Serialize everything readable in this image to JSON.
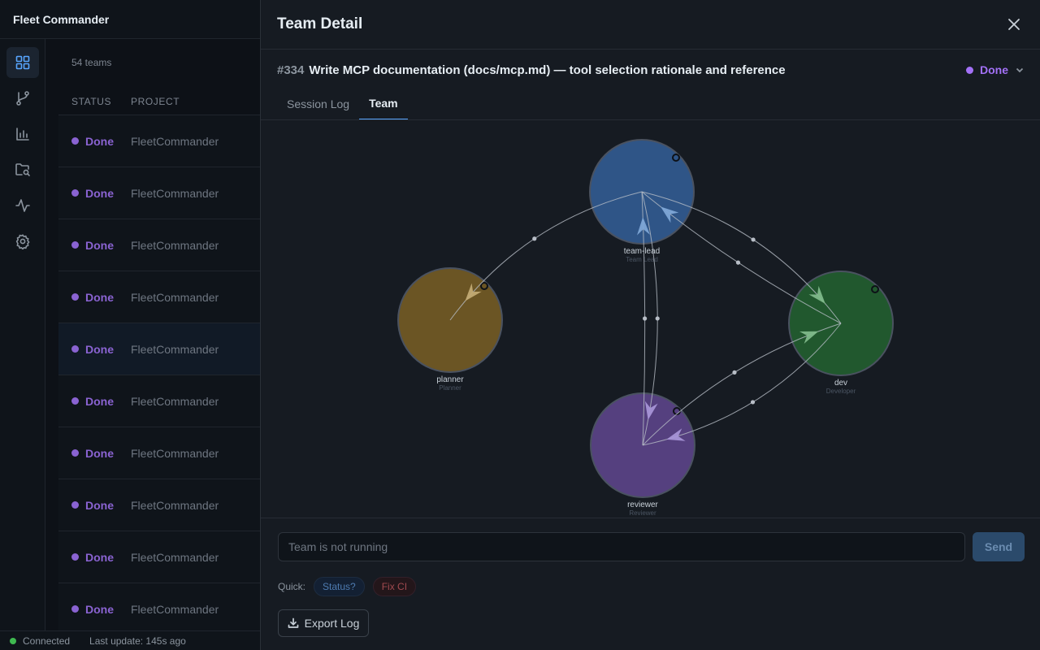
{
  "app": {
    "title": "Fleet Commander"
  },
  "rail": {
    "items": [
      {
        "icon": "grid-icon",
        "active": true
      },
      {
        "icon": "git-branch-icon",
        "active": false
      },
      {
        "icon": "bar-chart-icon",
        "active": false
      },
      {
        "icon": "folder-search-icon",
        "active": false
      },
      {
        "icon": "activity-icon",
        "active": false
      },
      {
        "icon": "gear-icon",
        "active": false
      }
    ]
  },
  "team_list": {
    "count_label": "54 teams",
    "columns": {
      "status": "STATUS",
      "project": "PROJECT"
    },
    "rows": [
      {
        "status": "Done",
        "project": "FleetCommander"
      },
      {
        "status": "Done",
        "project": "FleetCommander"
      },
      {
        "status": "Done",
        "project": "FleetCommander"
      },
      {
        "status": "Done",
        "project": "FleetCommander"
      },
      {
        "status": "Done",
        "project": "FleetCommander",
        "selected": true
      },
      {
        "status": "Done",
        "project": "FleetCommander"
      },
      {
        "status": "Done",
        "project": "FleetCommander"
      },
      {
        "status": "Done",
        "project": "FleetCommander"
      },
      {
        "status": "Done",
        "project": "FleetCommander"
      },
      {
        "status": "Done",
        "project": "FleetCommander"
      }
    ]
  },
  "statusbar": {
    "connection": "Connected",
    "last_update": "Last update: 145s ago"
  },
  "panel": {
    "title": "Team Detail",
    "issue": {
      "number": "#334",
      "title": "Write MCP documentation (docs/mcp.md) — tool selection rationale and reference",
      "status": "Done"
    },
    "tabs": [
      {
        "label": "Session Log",
        "active": false
      },
      {
        "label": "Team",
        "active": true
      }
    ],
    "graph": {
      "nodes": [
        {
          "id": "team-lead",
          "label": "team-lead",
          "role": "Team Lead",
          "color": "#2f5587"
        },
        {
          "id": "planner",
          "label": "planner",
          "role": "Planner",
          "color": "#6b5524"
        },
        {
          "id": "dev",
          "label": "dev",
          "role": "Developer",
          "color": "#21582e"
        },
        {
          "id": "reviewer",
          "label": "reviewer",
          "role": "Reviewer",
          "color": "#55407f"
        }
      ],
      "edges": [
        {
          "from": "team-lead",
          "to": "planner"
        },
        {
          "from": "team-lead",
          "to": "dev"
        },
        {
          "from": "dev",
          "to": "team-lead"
        },
        {
          "from": "team-lead",
          "to": "reviewer"
        },
        {
          "from": "reviewer",
          "to": "team-lead"
        },
        {
          "from": "reviewer",
          "to": "dev"
        },
        {
          "from": "dev",
          "to": "reviewer"
        }
      ]
    },
    "message": {
      "placeholder": "Team is not running",
      "send_label": "Send"
    },
    "quick": {
      "label": "Quick:",
      "chips": [
        "Status?",
        "Fix CI"
      ]
    },
    "export_label": "Export Log"
  }
}
